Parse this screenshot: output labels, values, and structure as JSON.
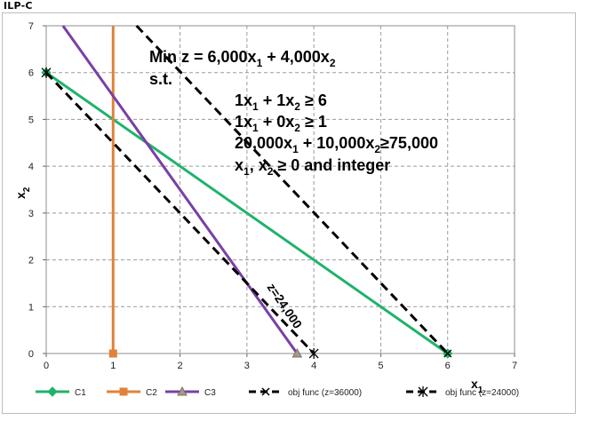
{
  "page": {
    "title": "ILP-C"
  },
  "chart_data": {
    "type": "line",
    "xlabel": "x",
    "xlabel_sub": "1",
    "ylabel": "x",
    "ylabel_sub": "2",
    "xlim": [
      0,
      7
    ],
    "ylim": [
      0,
      7
    ],
    "xticks": [
      "0",
      "1",
      "2",
      "3",
      "4",
      "5",
      "6",
      "7"
    ],
    "yticks": [
      "0",
      "1",
      "2",
      "3",
      "4",
      "5",
      "6",
      "7"
    ],
    "grid": true,
    "legend_position": "bottom",
    "series": [
      {
        "name": "C1",
        "color": "#1fb36b",
        "marker": "diamond",
        "dash": false,
        "points": [
          [
            0,
            6
          ],
          [
            6,
            0
          ]
        ],
        "marker_points": [
          [
            0,
            6
          ],
          [
            6,
            0
          ]
        ]
      },
      {
        "name": "C2",
        "color": "#e0823a",
        "marker": "square",
        "dash": false,
        "points": [
          [
            1,
            0
          ],
          [
            1,
            7
          ]
        ],
        "marker_points": [
          [
            1,
            0
          ]
        ]
      },
      {
        "name": "C3",
        "color": "#7a3fa4",
        "marker": "triangle",
        "dash": false,
        "points": [
          [
            0.25,
            7
          ],
          [
            3.75,
            0
          ]
        ],
        "marker_points": [
          [
            3.75,
            0
          ]
        ]
      },
      {
        "name": "obj func (z=36000)",
        "color": "#000000",
        "marker": "x",
        "dash": true,
        "points": [
          [
            1.35,
            7
          ],
          [
            6,
            0
          ]
        ],
        "marker_points": [
          [
            6,
            0
          ]
        ]
      },
      {
        "name": "obj func (z=24000)",
        "color": "#000000",
        "marker": "asterisk",
        "dash": true,
        "points": [
          [
            0,
            6
          ],
          [
            4,
            0
          ]
        ],
        "marker_points": [
          [
            0,
            6
          ],
          [
            4,
            0
          ]
        ]
      }
    ],
    "annotations": {
      "objective": {
        "text": "Min z = 6,000x",
        "sub1": "1",
        "mid": " + 4,000x",
        "sub2": "2"
      },
      "st": "s.t.",
      "c1": {
        "a": "1x",
        "s1": "1",
        "b": " + 1x",
        "s2": "2",
        "c": " ≥ 6"
      },
      "c2": {
        "a": "1x",
        "s1": "1",
        "b": " + 0x",
        "s2": "2",
        "c": " ≥ 1"
      },
      "c3": {
        "a": "20,000x",
        "s1": "1",
        "b": " + 10,000x",
        "s2": "2",
        "c": "≥75,000"
      },
      "c4": {
        "a": "x",
        "s1": "1",
        "b": ", x",
        "s2": "2",
        "c": " ≥ 0 and integer"
      },
      "zlabel": "z=24,000"
    }
  }
}
